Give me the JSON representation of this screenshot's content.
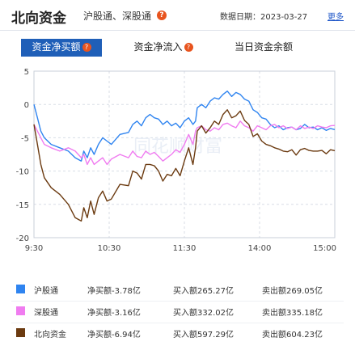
{
  "header": {
    "title": "北向资金",
    "subtitle": "沪股通、深股通",
    "date_label": "数据日期：",
    "date": "2023-03-27",
    "more": "更多"
  },
  "tabs": [
    {
      "label": "资金净买额",
      "active": true,
      "has_help": true
    },
    {
      "label": "资金净流入",
      "active": false,
      "has_help": true
    },
    {
      "label": "当日资金余额",
      "active": false,
      "has_help": false
    }
  ],
  "watermark": "同花顺财富",
  "chart_data": {
    "type": "line",
    "x_ticks": [
      "9:30",
      "10:30",
      "11:30",
      "14:00",
      "15:00"
    ],
    "y_ticks": [
      "5",
      "0",
      "-5",
      "-10",
      "-15",
      "-20"
    ],
    "ylim": [
      -20,
      5
    ],
    "grid": true,
    "series": [
      {
        "name": "沪股通",
        "color": "#2f84f0",
        "points": [
          [
            0,
            0
          ],
          [
            4,
            -2
          ],
          [
            8,
            -4
          ],
          [
            12,
            -5
          ],
          [
            20,
            -6
          ],
          [
            30,
            -6.5
          ],
          [
            40,
            -7
          ],
          [
            48,
            -8
          ],
          [
            55,
            -8.5
          ],
          [
            58,
            -7
          ],
          [
            62,
            -8
          ],
          [
            66,
            -6.5
          ],
          [
            70,
            -7.5
          ],
          [
            75,
            -6
          ],
          [
            80,
            -5
          ],
          [
            85,
            -5.5
          ],
          [
            90,
            -6
          ],
          [
            100,
            -4.5
          ],
          [
            110,
            -4.2
          ],
          [
            115,
            -3
          ],
          [
            120,
            -2.5
          ],
          [
            125,
            -3.2
          ],
          [
            130,
            -2
          ],
          [
            135,
            -1.5
          ],
          [
            140,
            -2
          ],
          [
            145,
            -2.2
          ],
          [
            150,
            -3
          ],
          [
            155,
            -2.5
          ],
          [
            160,
            -3.2
          ],
          [
            165,
            -2.8
          ],
          [
            170,
            -3.5
          ],
          [
            175,
            -2.5
          ],
          [
            180,
            -2
          ],
          [
            185,
            -3
          ],
          [
            188,
            -2.5
          ],
          [
            190,
            -0.5
          ],
          [
            195,
            0
          ],
          [
            200,
            -0.5
          ],
          [
            205,
            0.5
          ],
          [
            210,
            1
          ],
          [
            215,
            0.8
          ],
          [
            220,
            1.5
          ],
          [
            225,
            2
          ],
          [
            230,
            1.2
          ],
          [
            235,
            1.8
          ],
          [
            240,
            1.5
          ],
          [
            245,
            0.8
          ],
          [
            250,
            0.5
          ],
          [
            255,
            -0.8
          ],
          [
            260,
            -1.2
          ],
          [
            265,
            -2
          ],
          [
            270,
            -2.2
          ],
          [
            275,
            -3
          ],
          [
            280,
            -3.5
          ],
          [
            285,
            -3.2
          ],
          [
            290,
            -3.8
          ],
          [
            295,
            -3.5
          ],
          [
            300,
            -3.4
          ],
          [
            305,
            -3.8
          ],
          [
            310,
            -3.6
          ],
          [
            315,
            -3
          ],
          [
            320,
            -3.5
          ],
          [
            325,
            -3.4
          ],
          [
            330,
            -3.8
          ],
          [
            335,
            -3.5
          ],
          [
            340,
            -3.9
          ],
          [
            345,
            -3.6
          ],
          [
            350,
            -3.78
          ]
        ]
      },
      {
        "name": "深股通",
        "color": "#f07cf0",
        "points": [
          [
            0,
            -3
          ],
          [
            4,
            -4
          ],
          [
            8,
            -5
          ],
          [
            12,
            -6
          ],
          [
            20,
            -6.5
          ],
          [
            30,
            -7
          ],
          [
            40,
            -6.5
          ],
          [
            48,
            -7
          ],
          [
            55,
            -8
          ],
          [
            58,
            -7.5
          ],
          [
            62,
            -9
          ],
          [
            66,
            -8
          ],
          [
            70,
            -9
          ],
          [
            75,
            -8.5
          ],
          [
            80,
            -8
          ],
          [
            85,
            -9
          ],
          [
            90,
            -8.2
          ],
          [
            100,
            -7.5
          ],
          [
            110,
            -8
          ],
          [
            115,
            -7
          ],
          [
            120,
            -7.8
          ],
          [
            125,
            -8
          ],
          [
            130,
            -7
          ],
          [
            135,
            -7.5
          ],
          [
            140,
            -7.2
          ],
          [
            145,
            -7.8
          ],
          [
            150,
            -8.5
          ],
          [
            155,
            -8
          ],
          [
            160,
            -7.5
          ],
          [
            165,
            -6.8
          ],
          [
            170,
            -7.2
          ],
          [
            175,
            -6
          ],
          [
            180,
            -4.5
          ],
          [
            185,
            -6
          ],
          [
            188,
            -4
          ],
          [
            190,
            -3.5
          ],
          [
            195,
            -3.2
          ],
          [
            200,
            -3.8
          ],
          [
            205,
            -4
          ],
          [
            210,
            -3.5
          ],
          [
            215,
            -3.8
          ],
          [
            220,
            -3
          ],
          [
            225,
            -2.8
          ],
          [
            230,
            -3.2
          ],
          [
            235,
            -3.5
          ],
          [
            240,
            -2.5
          ],
          [
            245,
            -3.2
          ],
          [
            250,
            -3.5
          ],
          [
            255,
            -4
          ],
          [
            260,
            -3.2
          ],
          [
            265,
            -3.5
          ],
          [
            270,
            -3.8
          ],
          [
            275,
            -3.2
          ],
          [
            280,
            -3
          ],
          [
            285,
            -3.5
          ],
          [
            290,
            -3.2
          ],
          [
            295,
            -3.6
          ],
          [
            300,
            -3.4
          ],
          [
            305,
            -3.8
          ],
          [
            310,
            -3.2
          ],
          [
            315,
            -3.6
          ],
          [
            320,
            -3.4
          ],
          [
            325,
            -3.6
          ],
          [
            330,
            -3.2
          ],
          [
            335,
            -3.4
          ],
          [
            340,
            -3.5
          ],
          [
            345,
            -3.2
          ],
          [
            350,
            -3.16
          ]
        ]
      },
      {
        "name": "北向资金",
        "color": "#6b3a10",
        "points": [
          [
            0,
            -3
          ],
          [
            4,
            -6
          ],
          [
            8,
            -9
          ],
          [
            12,
            -11
          ],
          [
            20,
            -12.5
          ],
          [
            30,
            -13.5
          ],
          [
            40,
            -15
          ],
          [
            48,
            -17
          ],
          [
            55,
            -17.5
          ],
          [
            58,
            -15.5
          ],
          [
            62,
            -17
          ],
          [
            66,
            -14.5
          ],
          [
            70,
            -16.5
          ],
          [
            75,
            -14
          ],
          [
            80,
            -13
          ],
          [
            85,
            -14.5
          ],
          [
            90,
            -14.2
          ],
          [
            100,
            -12
          ],
          [
            110,
            -12.2
          ],
          [
            115,
            -10
          ],
          [
            120,
            -10.3
          ],
          [
            125,
            -11.2
          ],
          [
            130,
            -9
          ],
          [
            135,
            -9
          ],
          [
            140,
            -9.2
          ],
          [
            145,
            -10
          ],
          [
            150,
            -11.5
          ],
          [
            155,
            -10.5
          ],
          [
            160,
            -10.7
          ],
          [
            165,
            -9.6
          ],
          [
            170,
            -10.7
          ],
          [
            175,
            -8.5
          ],
          [
            180,
            -6.5
          ],
          [
            185,
            -9
          ],
          [
            188,
            -6.5
          ],
          [
            190,
            -4
          ],
          [
            195,
            -3.2
          ],
          [
            200,
            -4.3
          ],
          [
            205,
            -3.5
          ],
          [
            210,
            -2.5
          ],
          [
            215,
            -3
          ],
          [
            220,
            -1.5
          ],
          [
            225,
            -0.8
          ],
          [
            230,
            -2
          ],
          [
            235,
            -1.7
          ],
          [
            240,
            -1
          ],
          [
            245,
            -2.4
          ],
          [
            250,
            -3
          ],
          [
            255,
            -4.8
          ],
          [
            260,
            -4.4
          ],
          [
            265,
            -5.5
          ],
          [
            270,
            -6
          ],
          [
            275,
            -6.2
          ],
          [
            280,
            -6.5
          ],
          [
            285,
            -6.7
          ],
          [
            290,
            -7
          ],
          [
            295,
            -7.1
          ],
          [
            300,
            -6.8
          ],
          [
            305,
            -7.6
          ],
          [
            310,
            -6.8
          ],
          [
            315,
            -6.6
          ],
          [
            320,
            -6.9
          ],
          [
            325,
            -7
          ],
          [
            330,
            -7
          ],
          [
            335,
            -6.9
          ],
          [
            340,
            -7.4
          ],
          [
            345,
            -6.8
          ],
          [
            350,
            -6.94
          ]
        ]
      }
    ]
  },
  "legend": [
    {
      "name": "沪股通",
      "color": "#2f84f0",
      "net": "净买额-3.78亿",
      "buy": "买入额265.27亿",
      "sell": "卖出额269.05亿"
    },
    {
      "name": "深股通",
      "color": "#f07cf0",
      "net": "净买额-3.16亿",
      "buy": "买入额332.02亿",
      "sell": "卖出额335.18亿"
    },
    {
      "name": "北向资金",
      "color": "#6b3a10",
      "net": "净买额-6.94亿",
      "buy": "买入额597.29亿",
      "sell": "卖出额604.23亿"
    }
  ]
}
